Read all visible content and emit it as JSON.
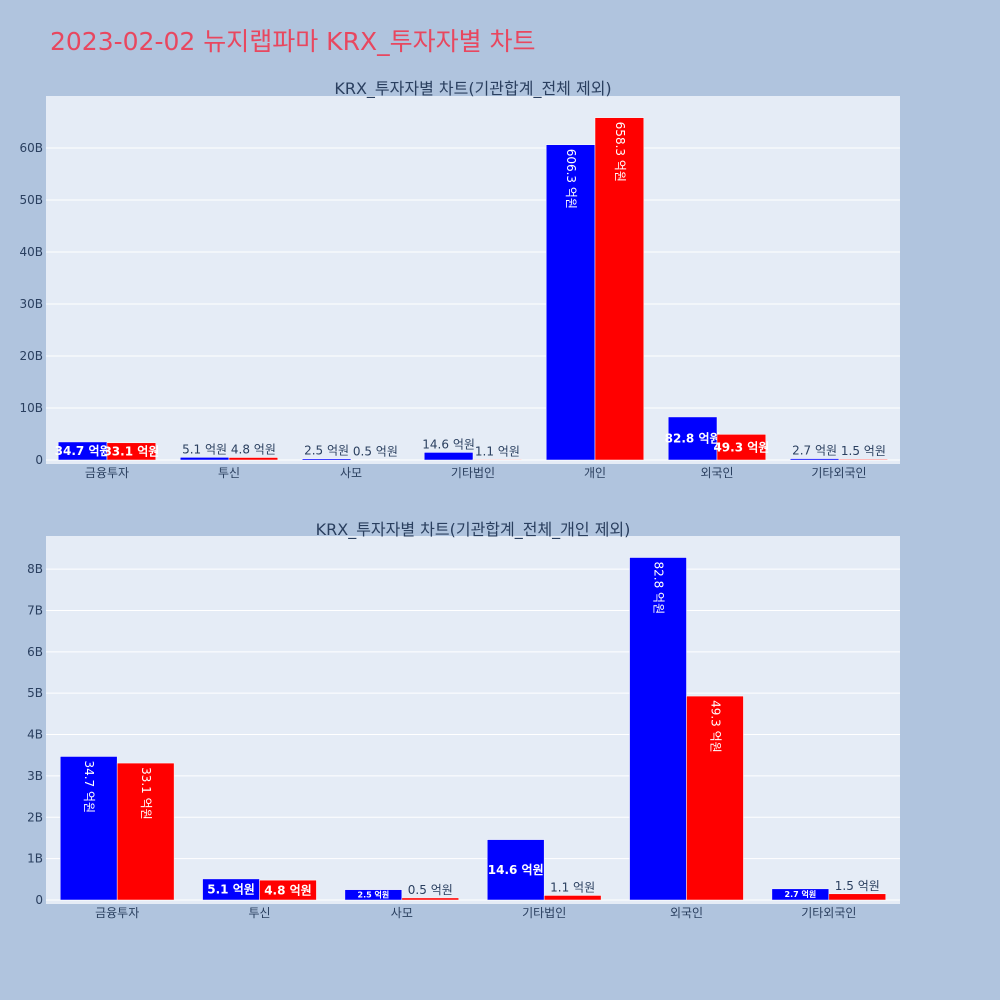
{
  "page_title": "2023-02-02 뉴지랩파마 KRX_투자자별 차트",
  "colors": {
    "background": "#b0c4de",
    "plot_bg": "#e5ecf6",
    "title": "#e8475f",
    "series_a": "#0000ff",
    "series_b": "#ff0000",
    "text": "#2a3f5f"
  },
  "chart_data": [
    {
      "type": "bar",
      "title": "KRX_투자자별 차트(기관합계_전체 제외)",
      "categories": [
        "금융투자",
        "투신",
        "사모",
        "기타법인",
        "개인",
        "외국인",
        "기타외국인"
      ],
      "series": [
        {
          "color": "#0000ff",
          "values": [
            3.47,
            0.51,
            0.25,
            1.46,
            60.63,
            8.28,
            0.27
          ],
          "labels": [
            "34.7 억원",
            "5.1 억원",
            "2.5 억원",
            "14.6 억원",
            "606.3 억원",
            "82.8 억원",
            "2.7 억원"
          ]
        },
        {
          "color": "#ff0000",
          "values": [
            3.31,
            0.48,
            0.05,
            0.11,
            65.83,
            4.93,
            0.15
          ],
          "labels": [
            "33.1 억원",
            "4.8 억원",
            "0.5 억원",
            "1.1 억원",
            "658.3 억원",
            "49.3 억원",
            "1.5 억원"
          ]
        }
      ],
      "yticks": [
        "0",
        "10B",
        "20B",
        "30B",
        "40B",
        "50B",
        "60B"
      ],
      "yrange": [
        0,
        70
      ],
      "grid": true
    },
    {
      "type": "bar",
      "title": "KRX_투자자별 차트(기관합계_전체_개인 제외)",
      "categories": [
        "금융투자",
        "투신",
        "사모",
        "기타법인",
        "외국인",
        "기타외국인"
      ],
      "series": [
        {
          "color": "#0000ff",
          "values": [
            3.47,
            0.51,
            0.25,
            1.46,
            8.28,
            0.27
          ],
          "labels": [
            "34.7 억원",
            "5.1 억원",
            "2.5 억원",
            "14.6 억원",
            "82.8 억원",
            "2.7 억원"
          ]
        },
        {
          "color": "#ff0000",
          "values": [
            3.31,
            0.48,
            0.05,
            0.11,
            4.93,
            0.15
          ],
          "labels": [
            "33.1 억원",
            "4.8 억원",
            "0.5 억원",
            "1.1 억원",
            "49.3 억원",
            "1.5 억원"
          ]
        }
      ],
      "yticks": [
        "0",
        "1B",
        "2B",
        "3B",
        "4B",
        "5B",
        "6B",
        "7B",
        "8B"
      ],
      "yrange": [
        0,
        8.8
      ],
      "grid": true
    }
  ]
}
